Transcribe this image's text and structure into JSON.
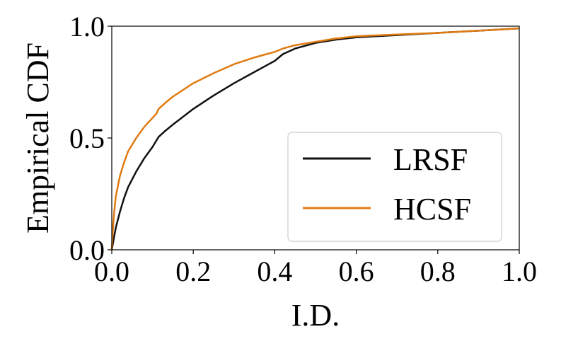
{
  "chart_data": {
    "type": "line",
    "title": "",
    "xlabel": "I.D.",
    "ylabel": "Empirical CDF",
    "xlim": [
      0.0,
      1.0
    ],
    "ylim": [
      0.0,
      1.0
    ],
    "x_ticks": [
      "0.0",
      "0.2",
      "0.4",
      "0.6",
      "0.8",
      "1.0"
    ],
    "y_ticks": [
      "0.0",
      "0.5",
      "1.0"
    ],
    "grid": false,
    "legend_position": "lower-right",
    "series": [
      {
        "name": "LRSF",
        "color": "#111111",
        "x": [
          0.0,
          0.005,
          0.01,
          0.02,
          0.03,
          0.04,
          0.06,
          0.08,
          0.1,
          0.11,
          0.115,
          0.13,
          0.15,
          0.2,
          0.25,
          0.3,
          0.35,
          0.4,
          0.42,
          0.45,
          0.5,
          0.55,
          0.6,
          0.7,
          0.8,
          0.9,
          1.0
        ],
        "y": [
          0.0,
          0.05,
          0.1,
          0.17,
          0.23,
          0.28,
          0.35,
          0.41,
          0.46,
          0.49,
          0.505,
          0.53,
          0.56,
          0.63,
          0.69,
          0.745,
          0.795,
          0.845,
          0.875,
          0.9,
          0.925,
          0.94,
          0.95,
          0.96,
          0.97,
          0.98,
          0.99
        ]
      },
      {
        "name": "HCSF",
        "color": "#e07b12",
        "x": [
          0.0,
          0.003,
          0.006,
          0.01,
          0.02,
          0.03,
          0.04,
          0.06,
          0.08,
          0.1,
          0.11,
          0.115,
          0.13,
          0.15,
          0.2,
          0.25,
          0.3,
          0.35,
          0.4,
          0.42,
          0.45,
          0.5,
          0.55,
          0.6,
          0.7,
          0.8,
          0.9,
          1.0
        ],
        "y": [
          0.0,
          0.1,
          0.17,
          0.24,
          0.33,
          0.39,
          0.44,
          0.5,
          0.55,
          0.59,
          0.61,
          0.63,
          0.655,
          0.685,
          0.745,
          0.79,
          0.83,
          0.86,
          0.885,
          0.9,
          0.915,
          0.93,
          0.945,
          0.955,
          0.963,
          0.97,
          0.98,
          0.99
        ]
      }
    ]
  }
}
